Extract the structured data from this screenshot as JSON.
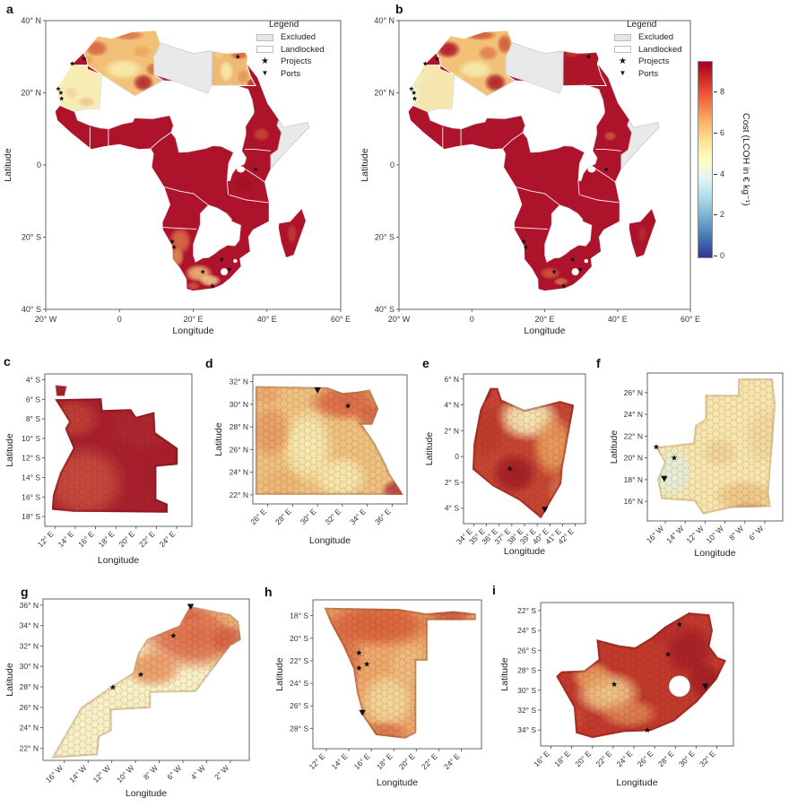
{
  "figure": {
    "background": "#ffffff",
    "colors": {
      "land_max_red": "#ae132c",
      "excluded_gray": "#e9e9e9",
      "landlocked_white": "#ffffff",
      "country_border": "#ffffff",
      "spine": "#555555",
      "tick_text": "#333333",
      "pale_yellow": "#f7f0bc",
      "orange": "#e08b52",
      "deep_orange": "#d86038",
      "pale_blue_green": "#e3efdc",
      "marker_black": "#111111"
    },
    "colorbar": {
      "label": "Cost (LCOH in € kg⁻¹)",
      "tick_labels": [
        "8",
        "6",
        "4",
        "2",
        "0"
      ],
      "range_min": 0,
      "range_max": 9.5,
      "gradient_bottom_to_top": [
        "#313695",
        "#4575b4",
        "#74add1",
        "#abd9e9",
        "#e0f3f8",
        "#ffffbf",
        "#fee090",
        "#fdae61",
        "#f46d43",
        "#d73027",
        "#a50026"
      ]
    },
    "legend": {
      "title": "Legend",
      "items": [
        {
          "label": "Excluded",
          "swatch": "excluded-patch"
        },
        {
          "label": "Landlocked",
          "swatch": "landlocked-patch"
        },
        {
          "label": "Projects",
          "swatch": "star"
        },
        {
          "label": "Ports",
          "swatch": "triangle-down"
        }
      ]
    },
    "panels": [
      {
        "id": "a",
        "label": "a",
        "xlabel": "Longitude",
        "ylabel": "Latitude",
        "xticks": [
          {
            "v": -20,
            "t": "20° W"
          },
          {
            "v": 0,
            "t": "0"
          },
          {
            "v": 20,
            "t": "20° E"
          },
          {
            "v": 40,
            "t": "40° E"
          },
          {
            "v": 60,
            "t": "60° E"
          }
        ],
        "yticks": [
          {
            "v": 40,
            "t": "40° N"
          },
          {
            "v": 20,
            "t": "20° N"
          },
          {
            "v": 0,
            "t": "0"
          },
          {
            "v": -20,
            "t": "20° S"
          },
          {
            "v": -40,
            "t": "40° S"
          }
        ],
        "projects": [
          [
            -9.5,
            29.4
          ],
          [
            -12.8,
            28.1
          ],
          [
            -16.6,
            21.1
          ],
          [
            -15.9,
            20.0
          ],
          [
            -15.7,
            18.4
          ],
          [
            32.1,
            30.0
          ],
          [
            36.9,
            -1.2
          ],
          [
            14.3,
            -21.2
          ],
          [
            14.8,
            -22.8
          ],
          [
            22.6,
            -29.6
          ],
          [
            25.2,
            -33.5
          ],
          [
            27.7,
            -26.2
          ],
          [
            29.8,
            -28.9
          ]
        ],
        "ports": []
      },
      {
        "id": "b",
        "label": "b",
        "xlabel": "Longitude",
        "ylabel": "Latitude",
        "xticks": [
          {
            "v": -20,
            "t": "20° W"
          },
          {
            "v": 0,
            "t": "0"
          },
          {
            "v": 20,
            "t": "20° E"
          },
          {
            "v": 40,
            "t": "40° E"
          },
          {
            "v": 60,
            "t": "60° E"
          }
        ],
        "yticks": [
          {
            "v": 40,
            "t": "40° N"
          },
          {
            "v": 20,
            "t": "20° N"
          },
          {
            "v": 0,
            "t": "0"
          },
          {
            "v": -20,
            "t": "20° S"
          },
          {
            "v": -40,
            "t": "40° S"
          }
        ],
        "projects": [
          [
            -9.5,
            29.4
          ],
          [
            -12.8,
            28.1
          ],
          [
            -16.6,
            21.1
          ],
          [
            -15.9,
            20.0
          ],
          [
            -15.7,
            18.4
          ],
          [
            32.1,
            30.0
          ],
          [
            36.9,
            -1.2
          ],
          [
            14.3,
            -21.2
          ],
          [
            14.8,
            -22.8
          ],
          [
            22.6,
            -29.6
          ],
          [
            25.2,
            -33.5
          ],
          [
            27.7,
            -26.2
          ],
          [
            29.8,
            -28.9
          ]
        ],
        "ports": []
      },
      {
        "id": "c",
        "label": "c",
        "xlabel": "Longitude",
        "ylabel": "Latitude",
        "xticks": [
          {
            "v": 12,
            "t": "12° E"
          },
          {
            "v": 14,
            "t": "14° E"
          },
          {
            "v": 16,
            "t": "16° E"
          },
          {
            "v": 18,
            "t": "18° E"
          },
          {
            "v": 20,
            "t": "20° E"
          },
          {
            "v": 22,
            "t": "22° E"
          },
          {
            "v": 24,
            "t": "24° E"
          }
        ],
        "yticks": [
          {
            "v": -4,
            "t": "4° S"
          },
          {
            "v": -6,
            "t": "6° S"
          },
          {
            "v": -8,
            "t": "8° S"
          },
          {
            "v": -10,
            "t": "10° S"
          },
          {
            "v": -12,
            "t": "12° S"
          },
          {
            "v": -14,
            "t": "14° S"
          },
          {
            "v": -16,
            "t": "16° S"
          },
          {
            "v": -18,
            "t": "18° S"
          }
        ],
        "projects": [],
        "ports": []
      },
      {
        "id": "d",
        "label": "d",
        "xlabel": "Longitude",
        "ylabel": "Latitude",
        "xticks": [
          {
            "v": 26,
            "t": "26° E"
          },
          {
            "v": 28,
            "t": "28° E"
          },
          {
            "v": 30,
            "t": "30° E"
          },
          {
            "v": 32,
            "t": "32° E"
          },
          {
            "v": 34,
            "t": "34° E"
          },
          {
            "v": 36,
            "t": "36° E"
          }
        ],
        "yticks": [
          {
            "v": 32,
            "t": "32° N"
          },
          {
            "v": 30,
            "t": "30° N"
          },
          {
            "v": 28,
            "t": "28° N"
          },
          {
            "v": 26,
            "t": "26° N"
          },
          {
            "v": 24,
            "t": "24° N"
          },
          {
            "v": 22,
            "t": "22° N"
          }
        ],
        "projects": [
          [
            32.45,
            29.85
          ]
        ],
        "ports": [
          [
            30.0,
            31.25
          ]
        ]
      },
      {
        "id": "e",
        "label": "e",
        "xlabel": "Longitude",
        "ylabel": "Latitude",
        "xticks": [
          {
            "v": 34,
            "t": "34° E"
          },
          {
            "v": 35,
            "t": "35° E"
          },
          {
            "v": 36,
            "t": "36° E"
          },
          {
            "v": 37,
            "t": "37° E"
          },
          {
            "v": 38,
            "t": "38° E"
          },
          {
            "v": 39,
            "t": "39° E"
          },
          {
            "v": 40,
            "t": "40° E"
          },
          {
            "v": 41,
            "t": "41° E"
          },
          {
            "v": 42,
            "t": "42° E"
          }
        ],
        "yticks": [
          {
            "v": 6,
            "t": "6° N"
          },
          {
            "v": 4,
            "t": "4° N"
          },
          {
            "v": 2,
            "t": "2° N"
          },
          {
            "v": 0,
            "t": "0"
          },
          {
            "v": -2,
            "t": "2° S"
          },
          {
            "v": -4,
            "t": "4° S"
          }
        ],
        "projects": [
          [
            36.85,
            -0.95
          ]
        ],
        "ports": [
          [
            39.6,
            -4.1
          ]
        ]
      },
      {
        "id": "f",
        "label": "f",
        "xlabel": "Longitude",
        "ylabel": "Latitude",
        "xticks": [
          {
            "v": -16,
            "t": "16° W"
          },
          {
            "v": -14,
            "t": "14° W"
          },
          {
            "v": -12,
            "t": "12° W"
          },
          {
            "v": -10,
            "t": "10° W"
          },
          {
            "v": -8,
            "t": "8° W"
          },
          {
            "v": -6,
            "t": "6° W"
          }
        ],
        "yticks": [
          {
            "v": 26,
            "t": "26° N"
          },
          {
            "v": 24,
            "t": "24° N"
          },
          {
            "v": 22,
            "t": "22° N"
          },
          {
            "v": 20,
            "t": "20° N"
          },
          {
            "v": 18,
            "t": "18° N"
          },
          {
            "v": 16,
            "t": "16° N"
          }
        ],
        "projects": [
          [
            -16.9,
            21.0
          ],
          [
            -15.1,
            20.0
          ]
        ],
        "ports": [
          [
            -16.1,
            18.1
          ]
        ]
      },
      {
        "id": "g",
        "label": "g",
        "xlabel": "Longitude",
        "ylabel": "Latitude",
        "xticks": [
          {
            "v": -16,
            "t": "16° W"
          },
          {
            "v": -14,
            "t": "14° W"
          },
          {
            "v": -12,
            "t": "12° W"
          },
          {
            "v": -10,
            "t": "10° W"
          },
          {
            "v": -8,
            "t": "8° W"
          },
          {
            "v": -6,
            "t": "6° W"
          },
          {
            "v": -4,
            "t": "4° W"
          },
          {
            "v": -2,
            "t": "2° W"
          }
        ],
        "yticks": [
          {
            "v": 36,
            "t": "36° N"
          },
          {
            "v": 34,
            "t": "34° N"
          },
          {
            "v": 32,
            "t": "32° N"
          },
          {
            "v": 30,
            "t": "30° N"
          },
          {
            "v": 28,
            "t": "28° N"
          },
          {
            "v": 26,
            "t": "26° N"
          },
          {
            "v": 24,
            "t": "24° N"
          },
          {
            "v": 22,
            "t": "22° N"
          }
        ],
        "projects": [
          [
            -11.9,
            27.95
          ],
          [
            -9.55,
            29.2
          ],
          [
            -6.8,
            33.0
          ]
        ],
        "ports": [
          [
            -5.35,
            35.85
          ]
        ]
      },
      {
        "id": "h",
        "label": "h",
        "xlabel": "Longitude",
        "ylabel": "Latitude",
        "xticks": [
          {
            "v": 12,
            "t": "12° E"
          },
          {
            "v": 14,
            "t": "14° E"
          },
          {
            "v": 16,
            "t": "16° E"
          },
          {
            "v": 18,
            "t": "18° E"
          },
          {
            "v": 20,
            "t": "20° E"
          },
          {
            "v": 22,
            "t": "22° E"
          },
          {
            "v": 24,
            "t": "24° E"
          }
        ],
        "yticks": [
          {
            "v": -18,
            "t": "18° S"
          },
          {
            "v": -20,
            "t": "20° S"
          },
          {
            "v": -22,
            "t": "22° S"
          },
          {
            "v": -24,
            "t": "24° S"
          },
          {
            "v": -26,
            "t": "26° S"
          },
          {
            "v": -28,
            "t": "28° S"
          }
        ],
        "projects": [
          [
            14.9,
            -21.3
          ],
          [
            15.6,
            -22.3
          ],
          [
            14.9,
            -22.65
          ]
        ],
        "ports": [
          [
            15.2,
            -26.6
          ]
        ]
      },
      {
        "id": "i",
        "label": "i",
        "xlabel": "Longitude",
        "ylabel": "Latitude",
        "xticks": [
          {
            "v": 16,
            "t": "16° E"
          },
          {
            "v": 18,
            "t": "18° E"
          },
          {
            "v": 20,
            "t": "20° E"
          },
          {
            "v": 22,
            "t": "22° E"
          },
          {
            "v": 24,
            "t": "24° E"
          },
          {
            "v": 26,
            "t": "26° E"
          },
          {
            "v": 28,
            "t": "28° E"
          },
          {
            "v": 30,
            "t": "30° E"
          },
          {
            "v": 32,
            "t": "32° E"
          }
        ],
        "yticks": [
          {
            "v": -22,
            "t": "22° S"
          },
          {
            "v": -24,
            "t": "24° S"
          },
          {
            "v": -26,
            "t": "26° S"
          },
          {
            "v": -28,
            "t": "28° S"
          },
          {
            "v": -30,
            "t": "30° S"
          },
          {
            "v": -32,
            "t": "32° S"
          },
          {
            "v": -34,
            "t": "34° S"
          }
        ],
        "projects": [
          [
            28.4,
            -23.4
          ],
          [
            27.3,
            -26.4
          ],
          [
            22.1,
            -29.4
          ],
          [
            25.3,
            -34.0
          ]
        ],
        "ports": [
          [
            30.9,
            -29.6
          ]
        ]
      }
    ]
  }
}
